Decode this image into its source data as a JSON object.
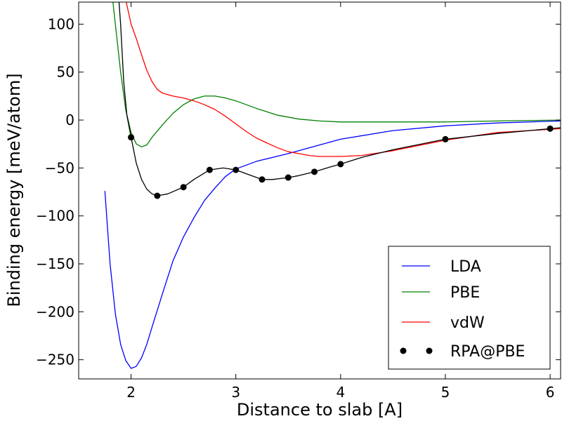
{
  "chart_data": {
    "type": "line",
    "title": "",
    "xlabel": "Distance to slab [A]",
    "ylabel": "Binding energy [meV/atom]",
    "xlim": [
      1.5,
      6.1
    ],
    "ylim": [
      -270,
      123
    ],
    "grid": false,
    "legend_position": "bottom-right",
    "x_ticks": [
      {
        "value": 2,
        "label": "2"
      },
      {
        "value": 3,
        "label": "3"
      },
      {
        "value": 4,
        "label": "4"
      },
      {
        "value": 5,
        "label": "5"
      },
      {
        "value": 6,
        "label": "6"
      }
    ],
    "y_ticks": [
      {
        "value": 100,
        "label": "100"
      },
      {
        "value": 50,
        "label": "50"
      },
      {
        "value": 0,
        "label": "0"
      },
      {
        "value": -50,
        "label": "−50"
      },
      {
        "value": -100,
        "label": "−100"
      },
      {
        "value": -150,
        "label": "−150"
      },
      {
        "value": -200,
        "label": "−200"
      },
      {
        "value": -250,
        "label": "−250"
      }
    ],
    "series": [
      {
        "name": "LDA",
        "color": "#0000ff",
        "style": "line",
        "points": [
          [
            1.75,
            -74
          ],
          [
            1.8,
            -150
          ],
          [
            1.85,
            -202
          ],
          [
            1.9,
            -234
          ],
          [
            1.95,
            -251
          ],
          [
            2.0,
            -259
          ],
          [
            2.05,
            -257
          ],
          [
            2.1,
            -248
          ],
          [
            2.15,
            -234
          ],
          [
            2.2,
            -216
          ],
          [
            2.3,
            -181
          ],
          [
            2.4,
            -147
          ],
          [
            2.5,
            -122
          ],
          [
            2.6,
            -102
          ],
          [
            2.7,
            -84
          ],
          [
            2.8,
            -71
          ],
          [
            2.9,
            -59
          ],
          [
            3.0,
            -51
          ],
          [
            3.2,
            -43
          ],
          [
            3.5,
            -35
          ],
          [
            4.0,
            -20
          ],
          [
            4.5,
            -11
          ],
          [
            5.0,
            -6
          ],
          [
            5.5,
            -3
          ],
          [
            6.1,
            -1
          ]
        ]
      },
      {
        "name": "PBE",
        "color": "#008000",
        "style": "line",
        "points": [
          [
            1.82,
            130
          ],
          [
            1.85,
            100
          ],
          [
            1.9,
            50
          ],
          [
            1.95,
            10
          ],
          [
            2.0,
            -13
          ],
          [
            2.05,
            -25
          ],
          [
            2.1,
            -28
          ],
          [
            2.15,
            -26
          ],
          [
            2.2,
            -18
          ],
          [
            2.3,
            -5
          ],
          [
            2.4,
            7
          ],
          [
            2.5,
            16
          ],
          [
            2.6,
            22
          ],
          [
            2.7,
            25
          ],
          [
            2.8,
            25
          ],
          [
            2.9,
            23
          ],
          [
            3.0,
            20
          ],
          [
            3.2,
            12
          ],
          [
            3.4,
            5
          ],
          [
            3.6,
            1
          ],
          [
            3.8,
            -1
          ],
          [
            4.0,
            -2
          ],
          [
            4.5,
            -2
          ],
          [
            5.0,
            -2
          ],
          [
            5.5,
            -1
          ],
          [
            6.1,
            0
          ]
        ]
      },
      {
        "name": "vdW",
        "color": "#ff0000",
        "style": "line",
        "points": [
          [
            1.95,
            125
          ],
          [
            2.0,
            100
          ],
          [
            2.05,
            85
          ],
          [
            2.1,
            68
          ],
          [
            2.15,
            52
          ],
          [
            2.2,
            40
          ],
          [
            2.25,
            32
          ],
          [
            2.3,
            28
          ],
          [
            2.4,
            25
          ],
          [
            2.5,
            23
          ],
          [
            2.6,
            20
          ],
          [
            2.7,
            16
          ],
          [
            2.8,
            11
          ],
          [
            2.9,
            4
          ],
          [
            3.0,
            -4
          ],
          [
            3.1,
            -12
          ],
          [
            3.2,
            -19
          ],
          [
            3.3,
            -24
          ],
          [
            3.4,
            -29
          ],
          [
            3.5,
            -33
          ],
          [
            3.6,
            -35
          ],
          [
            3.7,
            -37
          ],
          [
            3.8,
            -38
          ],
          [
            4.0,
            -38
          ],
          [
            4.2,
            -37
          ],
          [
            4.5,
            -32
          ],
          [
            5.0,
            -21
          ],
          [
            5.5,
            -13
          ],
          [
            6.1,
            -9
          ]
        ]
      },
      {
        "name": "RPA@PBE",
        "color": "#000000",
        "style": "line+markers",
        "points": [
          [
            1.88,
            130
          ],
          [
            1.9,
            100
          ],
          [
            1.93,
            40
          ],
          [
            1.96,
            5
          ],
          [
            2.0,
            -18
          ],
          [
            2.05,
            -45
          ],
          [
            2.1,
            -62
          ],
          [
            2.15,
            -72
          ],
          [
            2.2,
            -77
          ],
          [
            2.25,
            -79
          ],
          [
            2.35,
            -77
          ],
          [
            2.5,
            -70
          ],
          [
            2.6,
            -62
          ],
          [
            2.75,
            -52
          ],
          [
            2.88,
            -50
          ],
          [
            3.0,
            -52
          ],
          [
            3.1,
            -56
          ],
          [
            3.25,
            -62
          ],
          [
            3.35,
            -62
          ],
          [
            3.5,
            -60
          ],
          [
            3.6,
            -58
          ],
          [
            3.75,
            -54
          ],
          [
            3.9,
            -49
          ],
          [
            4.0,
            -46
          ],
          [
            4.2,
            -39
          ],
          [
            4.5,
            -31
          ],
          [
            5.0,
            -20
          ],
          [
            5.5,
            -14
          ],
          [
            6.0,
            -9
          ],
          [
            6.1,
            -8
          ]
        ],
        "markers": [
          [
            2.0,
            -18
          ],
          [
            2.25,
            -79
          ],
          [
            2.5,
            -70
          ],
          [
            2.75,
            -52
          ],
          [
            3.0,
            -52
          ],
          [
            3.25,
            -62
          ],
          [
            3.5,
            -60
          ],
          [
            3.75,
            -54
          ],
          [
            4.0,
            -46
          ],
          [
            5.0,
            -20
          ],
          [
            6.0,
            -9
          ]
        ]
      }
    ]
  }
}
